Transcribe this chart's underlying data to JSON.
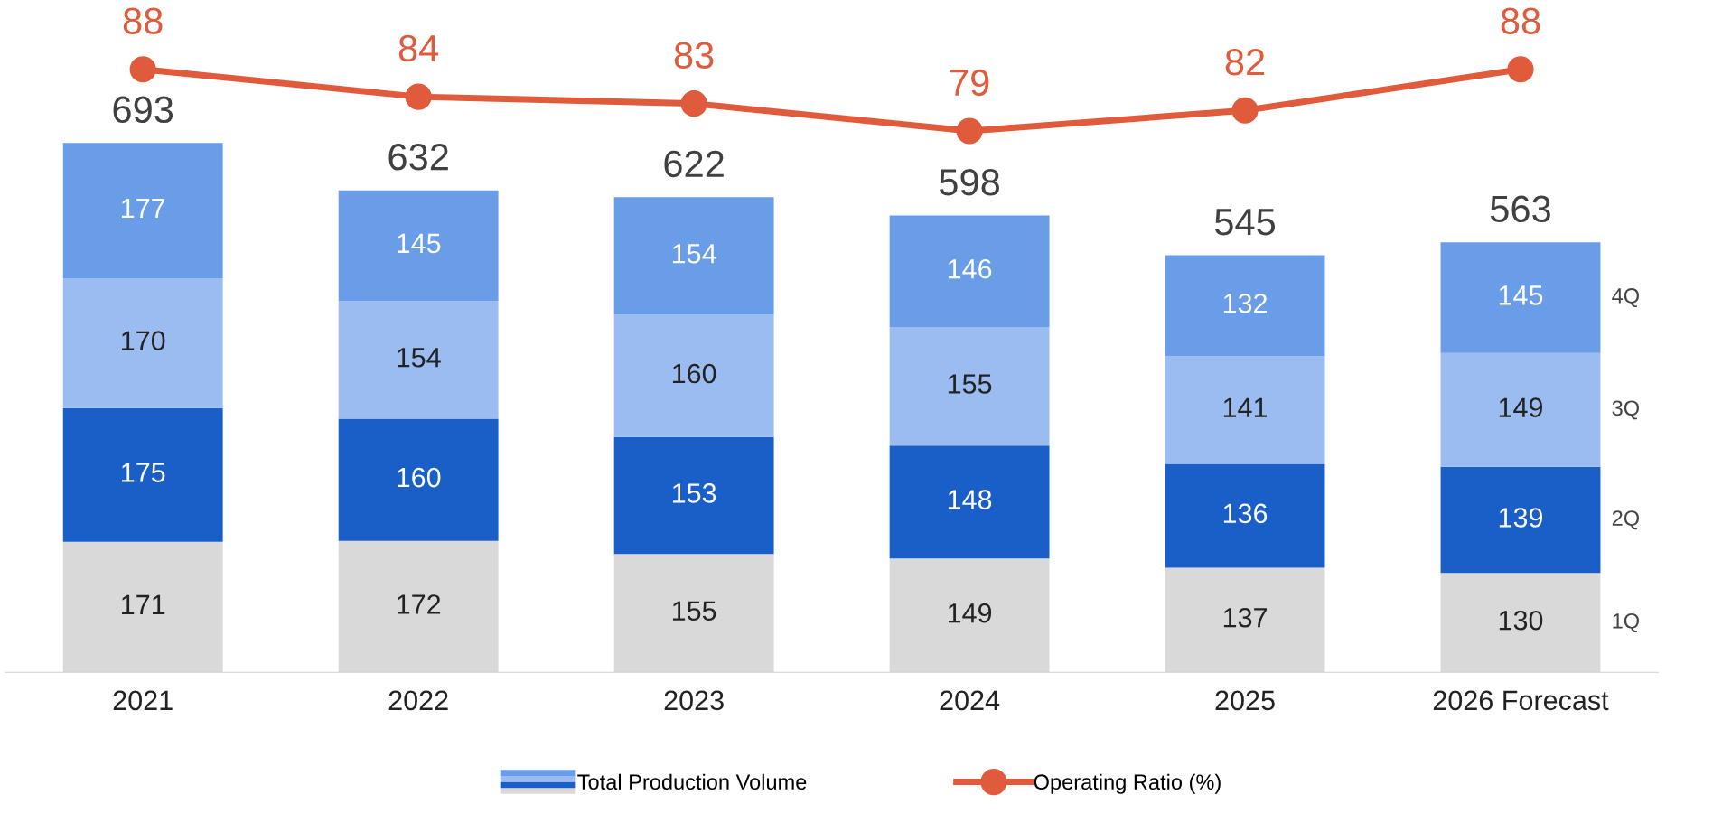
{
  "chart_data": [
    {
      "type": "bar",
      "stacked": true,
      "categories": [
        "2021",
        "2022",
        "2023",
        "2024",
        "2025",
        "2026 Forecast"
      ],
      "series": [
        {
          "name": "1Q",
          "color": "#d9d9d9",
          "values": [
            171,
            172,
            155,
            149,
            137,
            130
          ]
        },
        {
          "name": "2Q",
          "color": "#1a5fc8",
          "values": [
            175,
            160,
            153,
            148,
            136,
            139
          ]
        },
        {
          "name": "3Q",
          "color": "#9bbcf0",
          "values": [
            170,
            154,
            160,
            155,
            141,
            149
          ]
        },
        {
          "name": "4Q",
          "color": "#6a9de8",
          "values": [
            177,
            145,
            154,
            146,
            132,
            145
          ]
        }
      ],
      "totals": [
        "693",
        "632",
        "622",
        "598",
        "545",
        "563"
      ],
      "data_labels": true,
      "tick_labels": "x",
      "grid": false,
      "legend": "bottom",
      "annotations": [
        "Total Production Volume"
      ]
    },
    {
      "type": "line",
      "categories": [
        null,
        null,
        null,
        null,
        null,
        null
      ],
      "series": [
        {
          "name": "Operating Ratio (%)",
          "color": "#e05a3c",
          "values": [
            88,
            84,
            83,
            79,
            82,
            88
          ]
        }
      ],
      "data_labels": true,
      "grid": false,
      "legend": "bottom",
      "marker": "circle",
      "line_style": "solid"
    }
  ]
}
